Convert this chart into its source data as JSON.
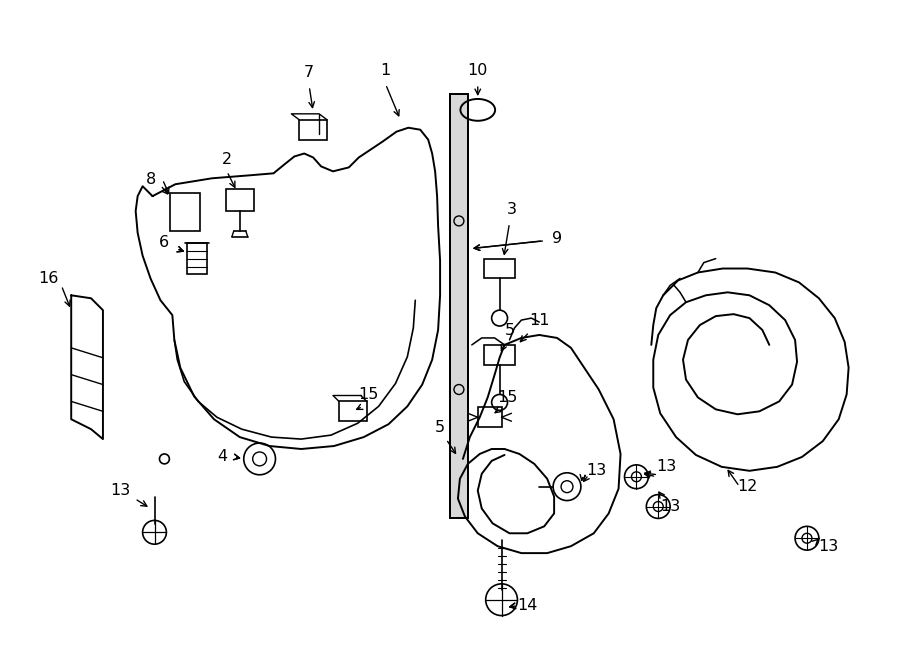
{
  "bg_color": "#ffffff",
  "line_color": "#000000",
  "lw": 1.4,
  "fig_w": 9.0,
  "fig_h": 6.61,
  "dpi": 100
}
